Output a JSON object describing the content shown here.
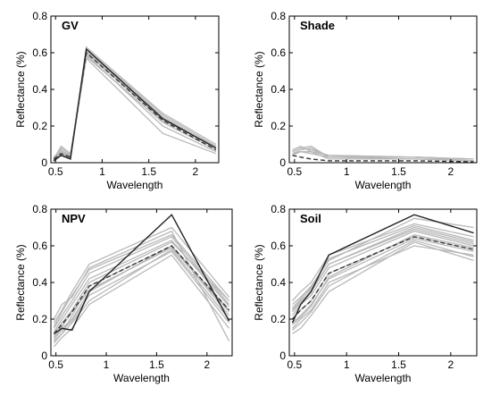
{
  "chart_data": [
    {
      "type": "line",
      "title": "GV",
      "xlabel": "Wavelength",
      "ylabel": "Reflectance (%)",
      "xlim": [
        0.45,
        2.25
      ],
      "ylim": [
        0,
        0.8
      ],
      "x_ticks": [
        "0.5",
        "1",
        "1.5",
        "2"
      ],
      "y_ticks": [
        "0",
        "0.2",
        "0.4",
        "0.6",
        "0.8"
      ],
      "bands": [
        0.48,
        0.56,
        0.66,
        0.83,
        1.65,
        2.22
      ],
      "grey_series": [
        [
          0.02,
          0.08,
          0.04,
          0.6,
          0.24,
          0.08
        ],
        [
          0.03,
          0.06,
          0.03,
          0.58,
          0.22,
          0.07
        ],
        [
          0.01,
          0.05,
          0.02,
          0.62,
          0.26,
          0.09
        ],
        [
          0.02,
          0.09,
          0.05,
          0.59,
          0.2,
          0.06
        ],
        [
          0.03,
          0.07,
          0.03,
          0.61,
          0.25,
          0.08
        ],
        [
          0.02,
          0.06,
          0.04,
          0.57,
          0.16,
          0.05
        ],
        [
          0.01,
          0.04,
          0.02,
          0.6,
          0.23,
          0.09
        ],
        [
          0.02,
          0.05,
          0.03,
          0.63,
          0.27,
          0.1
        ]
      ],
      "mean": [
        0.02,
        0.05,
        0.03,
        0.6,
        0.23,
        0.07
      ],
      "reference": [
        0.01,
        0.04,
        0.02,
        0.62,
        0.24,
        0.08
      ]
    },
    {
      "type": "line",
      "title": "Shade",
      "xlabel": "Wavelength",
      "ylabel": "Reflectance (%)",
      "xlim": [
        0.45,
        2.25
      ],
      "ylim": [
        0,
        0.8
      ],
      "x_ticks": [
        "0.5",
        "1",
        "1.5",
        "2"
      ],
      "y_ticks": [
        "0",
        "0.2",
        "0.4",
        "0.6",
        "0.8"
      ],
      "bands": [
        0.48,
        0.56,
        0.66,
        0.83,
        1.65,
        2.22
      ],
      "grey_series": [
        [
          0.06,
          0.08,
          0.07,
          0.04,
          0.03,
          0.02
        ],
        [
          0.05,
          0.07,
          0.08,
          0.03,
          0.03,
          0.01
        ],
        [
          0.04,
          0.06,
          0.05,
          0.03,
          0.02,
          0.01
        ],
        [
          0.07,
          0.09,
          0.06,
          0.04,
          0.03,
          0.02
        ],
        [
          0.05,
          0.06,
          0.06,
          0.02,
          0.02,
          0.01
        ],
        [
          0.06,
          0.08,
          0.09,
          0.03,
          0.03,
          0.02
        ]
      ],
      "mean": [
        0.04,
        0.03,
        0.02,
        0.01,
        0.01,
        0.005
      ],
      "reference": null
    },
    {
      "type": "line",
      "title": "NPV",
      "xlabel": "Wavelength",
      "ylabel": "Reflectance (%)",
      "xlim": [
        0.45,
        2.25
      ],
      "ylim": [
        0,
        0.8
      ],
      "x_ticks": [
        "0.5",
        "1",
        "1.5",
        "2"
      ],
      "y_ticks": [
        "0",
        "0.2",
        "0.4",
        "0.6",
        "0.8"
      ],
      "bands": [
        0.48,
        0.56,
        0.66,
        0.83,
        1.65,
        2.22
      ],
      "grey_series": [
        [
          0.1,
          0.15,
          0.2,
          0.35,
          0.6,
          0.25
        ],
        [
          0.12,
          0.18,
          0.25,
          0.4,
          0.62,
          0.3
        ],
        [
          0.08,
          0.12,
          0.18,
          0.3,
          0.58,
          0.2
        ],
        [
          0.15,
          0.22,
          0.3,
          0.45,
          0.65,
          0.28
        ],
        [
          0.05,
          0.1,
          0.15,
          0.28,
          0.55,
          0.15
        ],
        [
          0.18,
          0.25,
          0.35,
          0.5,
          0.7,
          0.32
        ],
        [
          0.2,
          0.28,
          0.32,
          0.48,
          0.68,
          0.08
        ],
        [
          0.07,
          0.12,
          0.22,
          0.38,
          0.6,
          0.22
        ],
        [
          0.13,
          0.2,
          0.28,
          0.42,
          0.63,
          0.27
        ],
        [
          0.09,
          0.14,
          0.19,
          0.33,
          0.57,
          0.18
        ],
        [
          0.16,
          0.24,
          0.33,
          0.47,
          0.66,
          0.3
        ],
        [
          0.11,
          0.16,
          0.24,
          0.36,
          0.59,
          0.24
        ]
      ],
      "mean": [
        0.12,
        0.17,
        0.24,
        0.38,
        0.6,
        0.25
      ],
      "reference": [
        0.12,
        0.15,
        0.14,
        0.35,
        0.77,
        0.19
      ]
    },
    {
      "type": "line",
      "title": "Soil",
      "xlabel": "Wavelength",
      "ylabel": "Reflectance (%)",
      "xlim": [
        0.45,
        2.25
      ],
      "ylim": [
        0,
        0.8
      ],
      "x_ticks": [
        "0.5",
        "1",
        "1.5",
        "2"
      ],
      "y_ticks": [
        "0",
        "0.2",
        "0.4",
        "0.6",
        "0.8"
      ],
      "bands": [
        0.48,
        0.56,
        0.66,
        0.83,
        1.65,
        2.22
      ],
      "grey_series": [
        [
          0.2,
          0.25,
          0.3,
          0.45,
          0.65,
          0.58
        ],
        [
          0.25,
          0.3,
          0.35,
          0.5,
          0.7,
          0.62
        ],
        [
          0.15,
          0.2,
          0.25,
          0.4,
          0.6,
          0.55
        ],
        [
          0.3,
          0.35,
          0.4,
          0.55,
          0.72,
          0.65
        ],
        [
          0.12,
          0.15,
          0.22,
          0.35,
          0.62,
          0.52
        ],
        [
          0.22,
          0.28,
          0.33,
          0.48,
          0.68,
          0.6
        ],
        [
          0.18,
          0.22,
          0.28,
          0.42,
          0.64,
          0.57
        ],
        [
          0.28,
          0.32,
          0.38,
          0.52,
          0.75,
          0.7
        ],
        [
          0.14,
          0.18,
          0.24,
          0.38,
          0.63,
          0.54
        ],
        [
          0.24,
          0.29,
          0.36,
          0.5,
          0.69,
          0.61
        ],
        [
          0.17,
          0.21,
          0.27,
          0.43,
          0.66,
          0.59
        ],
        [
          0.26,
          0.31,
          0.37,
          0.53,
          0.71,
          0.63
        ]
      ],
      "mean": [
        0.2,
        0.25,
        0.3,
        0.45,
        0.65,
        0.58
      ],
      "reference": [
        0.18,
        0.28,
        0.35,
        0.55,
        0.77,
        0.67
      ]
    }
  ],
  "colors": {
    "grey_series": "#b8b8b8",
    "mean_line": "#333333",
    "reference_line": "#222222",
    "axes": "#000000"
  }
}
